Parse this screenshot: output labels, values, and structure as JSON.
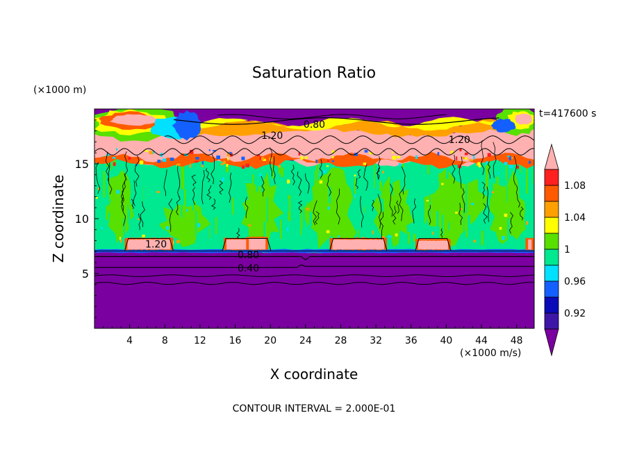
{
  "chart_data": {
    "type": "heatmap",
    "title": "Saturation Ratio",
    "xlabel": "X coordinate",
    "ylabel": "Z coordinate",
    "x_unit": "(×1000 m/s)",
    "y_unit": "(×1000 m)",
    "time_label": "t=417600 s",
    "footer": "CONTOUR INTERVAL = 2.000E-01",
    "xlim": [
      0,
      50
    ],
    "ylim": [
      0,
      20
    ],
    "x_ticks": [
      "4",
      "8",
      "12",
      "16",
      "20",
      "24",
      "28",
      "32",
      "36",
      "40",
      "44",
      "48"
    ],
    "x_tick_values": [
      4,
      8,
      12,
      16,
      20,
      24,
      28,
      32,
      36,
      40,
      44,
      48
    ],
    "y_ticks": [
      "5",
      "10",
      "15"
    ],
    "y_tick_values": [
      5,
      10,
      15
    ],
    "colorbar": {
      "labels": [
        "0.92",
        "0.96",
        "1",
        "1.04",
        "1.08"
      ],
      "levels": [
        0.9,
        0.92,
        0.94,
        0.96,
        0.98,
        1.0,
        1.02,
        1.04,
        1.06,
        1.08,
        1.1
      ],
      "colors": [
        "#7a00a0",
        "#3d16a8",
        "#0a0ab8",
        "#1460ff",
        "#00e0ff",
        "#00e890",
        "#58e000",
        "#ffff00",
        "#ffa000",
        "#ff5a00",
        "#ff2020",
        "#ffb0b0"
      ]
    },
    "contour_labels": [
      {
        "text": "1.20",
        "x": 20.2,
        "y": 17.6
      },
      {
        "text": "0.80",
        "x": 25,
        "y": 18.6
      },
      {
        "text": "1.20",
        "x": 41.5,
        "y": 17.2
      },
      {
        "text": "1.20",
        "x": 7.0,
        "y": 7.7
      },
      {
        "text": "0.80",
        "x": 17.5,
        "y": 6.7
      },
      {
        "text": "0.40",
        "x": 17.5,
        "y": 5.5
      }
    ]
  }
}
